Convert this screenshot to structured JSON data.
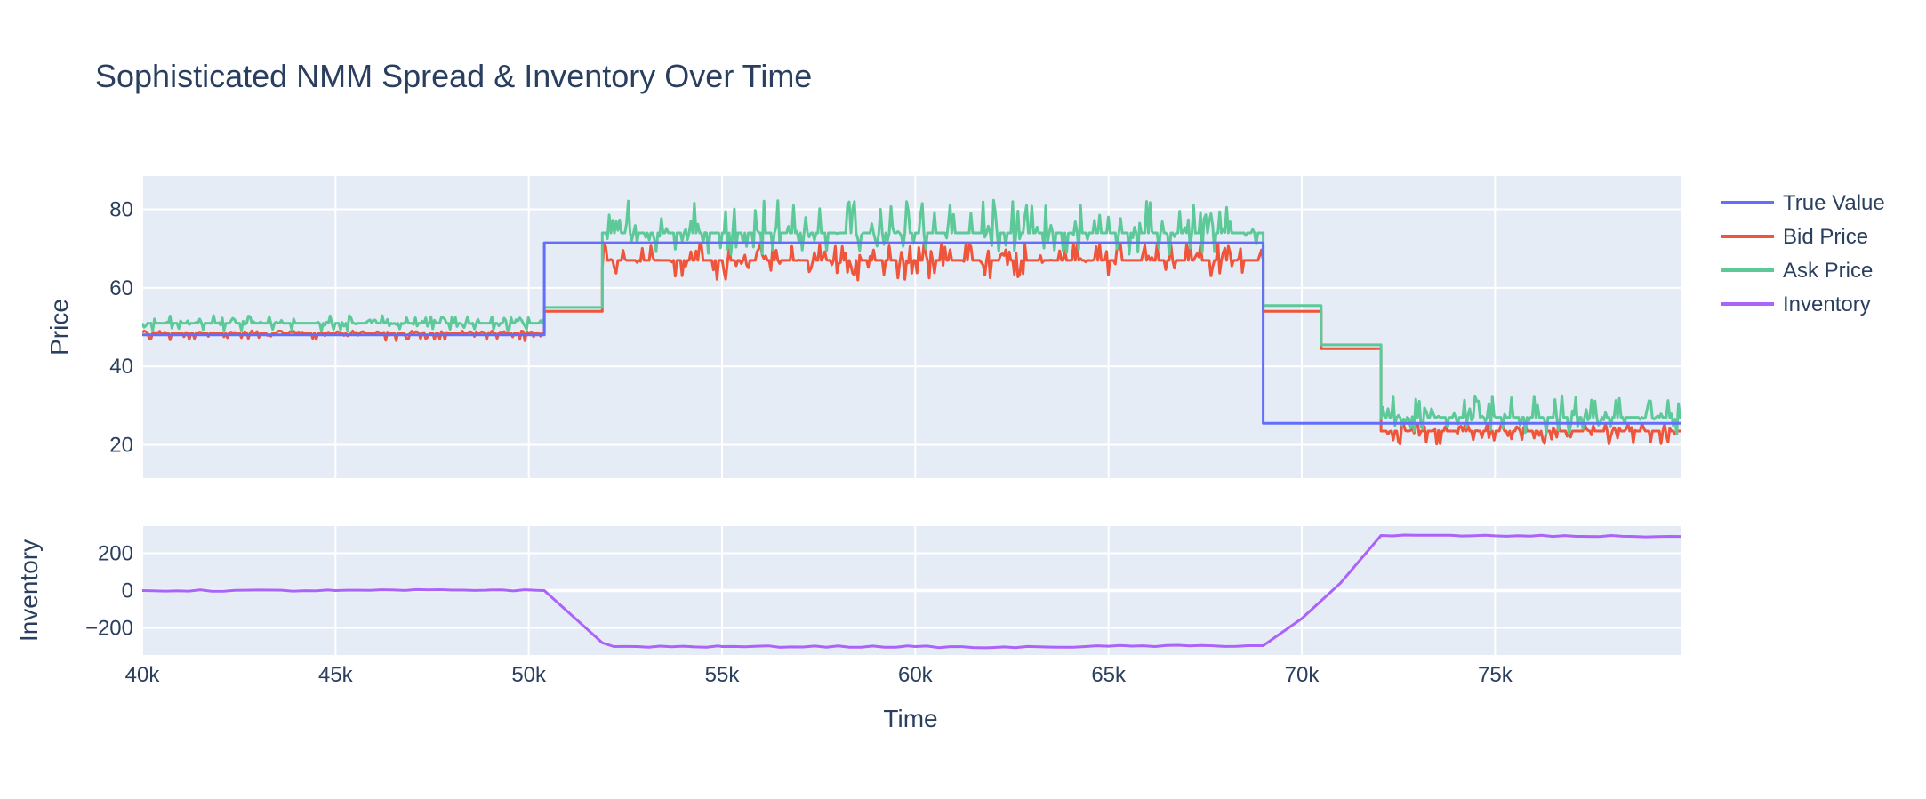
{
  "chart_data": {
    "type": "line",
    "title": "Sophisticated NMM Spread & Inventory Over Time",
    "xlabel": "Time",
    "x_ticks": [
      {
        "value": 40000,
        "label": "40k"
      },
      {
        "value": 45000,
        "label": "45k"
      },
      {
        "value": 50000,
        "label": "50k"
      },
      {
        "value": 55000,
        "label": "55k"
      },
      {
        "value": 60000,
        "label": "60k"
      },
      {
        "value": 65000,
        "label": "65k"
      },
      {
        "value": 70000,
        "label": "70k"
      },
      {
        "value": 75000,
        "label": "75k"
      }
    ],
    "xlim": [
      40000,
      79800
    ],
    "grid": true,
    "legend_position": "top-right",
    "colors": {
      "plot_bg": "#e5ecf6",
      "grid": "#ffffff",
      "text": "#2a3f5f",
      "true_value": "#636efa",
      "bid": "#ef553b",
      "ask": "#00cc96",
      "ask_display": "#5dc998",
      "inventory": "#ab63fa"
    },
    "panels": [
      {
        "id": "price",
        "ylabel": "Price",
        "ylim": [
          11.5,
          88.5
        ],
        "y_ticks": [
          {
            "value": 20,
            "label": "20"
          },
          {
            "value": 40,
            "label": "40"
          },
          {
            "value": 60,
            "label": "60"
          },
          {
            "value": 80,
            "label": "80"
          }
        ]
      },
      {
        "id": "inventory",
        "ylabel": "Inventory",
        "ylim": [
          -345,
          345
        ],
        "y_ticks": [
          {
            "value": 200,
            "label": "200"
          },
          {
            "value": 0,
            "label": "0"
          },
          {
            "value": -200,
            "label": "−200"
          }
        ]
      }
    ],
    "series": [
      {
        "name": "True Value",
        "panel": "price",
        "shape": "step",
        "x": [
          40000,
          50400,
          69000,
          72050,
          79800
        ],
        "values": [
          48,
          71.5,
          25.5,
          25.5,
          25.5
        ]
      },
      {
        "name": "Bid Price",
        "panel": "price",
        "regimes": [
          {
            "x": [
              40000,
              50400
            ],
            "base": 48.5,
            "noise_up": 0.5,
            "noise_down": 2.0
          },
          {
            "x": [
              50400,
              51900
            ],
            "base": 54.0,
            "noise_up": 0.0,
            "noise_down": 0.0
          },
          {
            "x": [
              51900,
              69000
            ],
            "base": 67.0,
            "noise_up": 4.5,
            "noise_down": 5.0
          },
          {
            "x": [
              69000,
              70500
            ],
            "base": 54.0,
            "noise_up": 0.0,
            "noise_down": 0.0
          },
          {
            "x": [
              70500,
              72050
            ],
            "base": 44.5,
            "noise_up": 0.0,
            "noise_down": 0.0
          },
          {
            "x": [
              72050,
              79800
            ],
            "base": 23.5,
            "noise_up": 2.0,
            "noise_down": 3.5
          }
        ]
      },
      {
        "name": "Ask Price",
        "panel": "price",
        "regimes": [
          {
            "x": [
              40000,
              50400
            ],
            "base": 51.0,
            "noise_up": 2.0,
            "noise_down": 2.0
          },
          {
            "x": [
              50400,
              51900
            ],
            "base": 55.0,
            "noise_up": 0.0,
            "noise_down": 0.0
          },
          {
            "x": [
              51900,
              69000
            ],
            "base": 74.0,
            "noise_up": 8.5,
            "noise_down": 5.5
          },
          {
            "x": [
              69000,
              70500
            ],
            "base": 55.5,
            "noise_up": 0.0,
            "noise_down": 0.0
          },
          {
            "x": [
              70500,
              72050
            ],
            "base": 45.5,
            "noise_up": 0.0,
            "noise_down": 0.0
          },
          {
            "x": [
              72050,
              79800
            ],
            "base": 27.0,
            "noise_up": 5.5,
            "noise_down": 4.5
          }
        ]
      },
      {
        "name": "Inventory",
        "panel": "inventory",
        "x": [
          40000,
          45000,
          49000,
          50400,
          51900,
          52200,
          55000,
          60000,
          62000,
          65000,
          69000,
          70000,
          71000,
          72050,
          75000,
          79800
        ],
        "values": [
          0,
          0,
          3,
          0,
          -280,
          -300,
          -300,
          -300,
          -305,
          -298,
          -295,
          -150,
          40,
          295,
          293,
          290
        ]
      }
    ]
  }
}
